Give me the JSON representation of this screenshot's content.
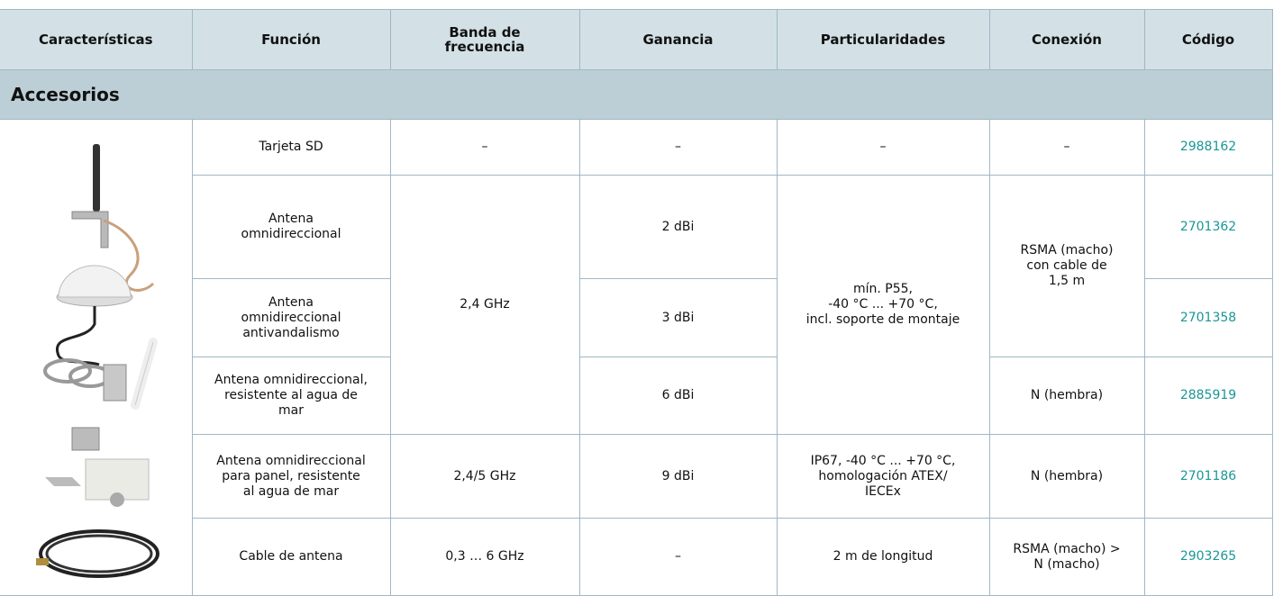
{
  "table": {
    "header": [
      "Características",
      "Función",
      "Banda de\nfrecuencia",
      "Ganancia",
      "Particularidades",
      "Conexión",
      "Código"
    ],
    "section": "Accesorios",
    "rows": [
      [
        "Tarjeta SD",
        "–",
        "–",
        "–",
        "–",
        "2988162"
      ],
      [
        "Antena\nomnidireccional",
        "2,4 GHz",
        "2 dBi",
        "mín. P55,\n-40 °C ... +70 °C,\nincl. soporte de montaje",
        "RSMA (macho)\ncon cable de\n1,5 m",
        "2701362"
      ],
      [
        "Antena\nomnidireccional\nantivandalismo",
        "3 dBi",
        "2701358"
      ],
      [
        "Antena omnidireccional,\nresistente al agua de\nmar",
        "6 dBi",
        "N (hembra)",
        "2885919"
      ],
      [
        "Antena omnidireccional\npara panel, resistente\nal agua de mar",
        "2,4/5 GHz",
        "9 dBi",
        "IP67, -40 °C ... +70 °C,\nhomologación ATEX/\nIECEx",
        "N (hembra)",
        "2701186"
      ],
      [
        "Cable de antena",
        "0,3 … 6 GHz",
        "–",
        "2 m de longitud",
        "RSMA (macho) >\nN (macho)",
        "2903265"
      ]
    ]
  }
}
